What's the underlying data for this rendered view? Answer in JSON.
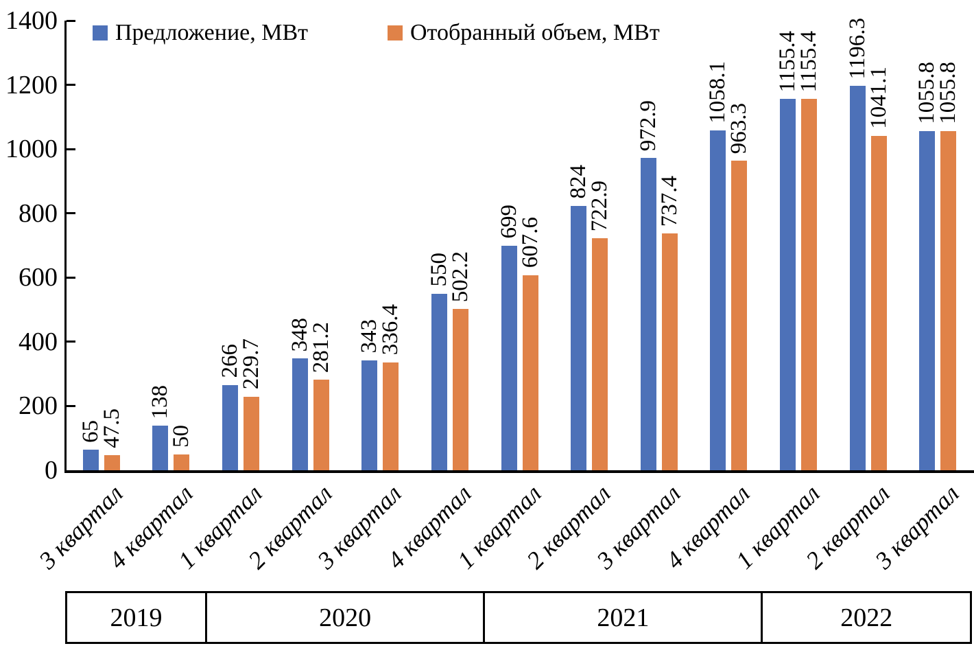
{
  "legend": {
    "supply_label": "Предложение, МВт",
    "selected_label": "Отобранный объем, МВт"
  },
  "chart_data": {
    "type": "bar",
    "title": "",
    "categories": [
      "3 квартал",
      "4 квартал",
      "1 квартал",
      "2 квартал",
      "3 квартал",
      "4 квартал",
      "1 квартал",
      "2 квартал",
      "3 квартал",
      "4 квартал",
      "1 квартал",
      "2 квартал",
      "3 квартал"
    ],
    "year_groups": [
      {
        "label": "2019",
        "quarters": 2
      },
      {
        "label": "2020",
        "quarters": 4
      },
      {
        "label": "2021",
        "quarters": 4
      },
      {
        "label": "2022",
        "quarters": 3
      }
    ],
    "series": [
      {
        "name": "Предложение, МВт",
        "color": "#4D71B8",
        "values": [
          65,
          138,
          266,
          348,
          343,
          550,
          699,
          824,
          972.9,
          1058.1,
          1155.4,
          1196.3,
          1055.8
        ],
        "value_labels": [
          "65",
          "138",
          "266",
          "348",
          "343",
          "550",
          "699",
          "824",
          "972.9",
          "1058.1",
          "1155.4",
          "1196.3",
          "1055.8"
        ]
      },
      {
        "name": "Отобранный объем, МВт",
        "color": "#E08248",
        "values": [
          47.5,
          50,
          229.7,
          281.2,
          336.4,
          502.2,
          607.6,
          722.9,
          737.4,
          963.3,
          1155.4,
          1041.1,
          1055.8
        ],
        "value_labels": [
          "47.5",
          "50",
          "229.7",
          "281.2",
          "336.4",
          "502.2",
          "607.6",
          "722.9",
          "737.4",
          "963.3",
          "1155.4",
          "1041.1",
          "1055.8"
        ]
      }
    ],
    "ylim": [
      0,
      1400
    ],
    "yticks": [
      0,
      200,
      400,
      600,
      800,
      1000,
      1200,
      1400
    ],
    "grid": false,
    "legend_position": "top-left",
    "axis_color": "#000000",
    "background_color": "#FFFFFF"
  }
}
